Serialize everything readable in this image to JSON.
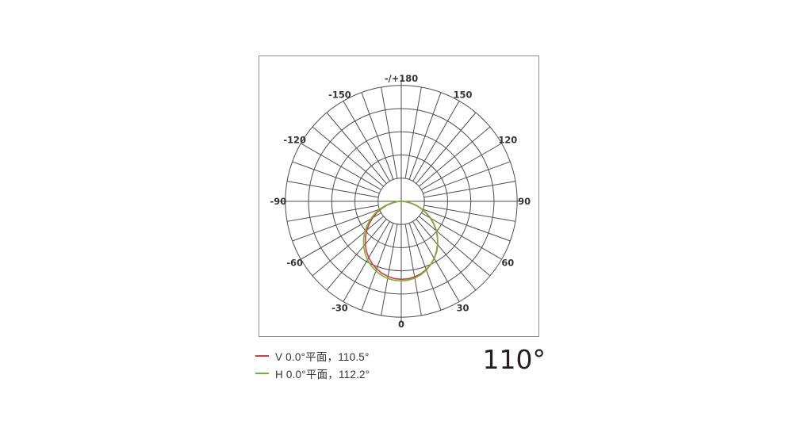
{
  "figure": {
    "beam_angle_large_label": "110°"
  },
  "colors": {
    "grid": "#4f4b49",
    "frame": "#8f8f8f",
    "label_text": "#333333",
    "big_text": "#241f1d",
    "v_plane_red": "#d9383d",
    "h_plane_green": "#6fb52f"
  },
  "legend": {
    "items": [
      {
        "label": "V 0.0°平面，110.5°",
        "color": "#d9383d"
      },
      {
        "label": "H 0.0°平面，112.2°",
        "color": "#6fb52f"
      }
    ]
  },
  "chart_data": {
    "type": "polar",
    "subtype": "luminous-intensity-distribution",
    "angle_convention": "0° at bottom (nadir), positive clockwise to the right, ±180° at top",
    "radial_scale": "relative intensity, fraction of outer ring radius (no radial tick labels shown)",
    "grid": {
      "rings": 5,
      "spoke_step_deg": 10,
      "label_step_deg": 30
    },
    "angle_labels": [
      {
        "deg": 0,
        "text": "0"
      },
      {
        "deg": 30,
        "text": "30"
      },
      {
        "deg": 60,
        "text": "60"
      },
      {
        "deg": 90,
        "text": "90"
      },
      {
        "deg": 120,
        "text": "120"
      },
      {
        "deg": 150,
        "text": "150"
      },
      {
        "deg": 180,
        "text": "-/+180"
      },
      {
        "deg": -150,
        "text": "-150"
      },
      {
        "deg": -120,
        "text": "-120"
      },
      {
        "deg": -90,
        "text": "-90"
      },
      {
        "deg": -60,
        "text": "-60"
      },
      {
        "deg": -30,
        "text": "-30"
      }
    ],
    "series": [
      {
        "name": "V 0.0°平面",
        "beam_angle_deg": 110.5,
        "color": "#d9383d",
        "data_name": "series-v-curve",
        "points": [
          [
            -95,
            0.0
          ],
          [
            -90,
            0.012
          ],
          [
            -85,
            0.034
          ],
          [
            -80,
            0.077
          ],
          [
            -75,
            0.127
          ],
          [
            -70,
            0.179
          ],
          [
            -65,
            0.232
          ],
          [
            -60,
            0.286
          ],
          [
            -55,
            0.337
          ],
          [
            -50,
            0.389
          ],
          [
            -45,
            0.437
          ],
          [
            -40,
            0.483
          ],
          [
            -35,
            0.525
          ],
          [
            -30,
            0.562
          ],
          [
            -25,
            0.594
          ],
          [
            -20,
            0.621
          ],
          [
            -15,
            0.643
          ],
          [
            -10,
            0.658
          ],
          [
            -5,
            0.669
          ],
          [
            0,
            0.673
          ],
          [
            5,
            0.671
          ],
          [
            10,
            0.662
          ],
          [
            15,
            0.648
          ],
          [
            20,
            0.627
          ],
          [
            25,
            0.601
          ],
          [
            30,
            0.569
          ],
          [
            35,
            0.532
          ],
          [
            40,
            0.489
          ],
          [
            45,
            0.443
          ],
          [
            50,
            0.394
          ],
          [
            55,
            0.342
          ],
          [
            60,
            0.29
          ],
          [
            65,
            0.235
          ],
          [
            70,
            0.182
          ],
          [
            75,
            0.129
          ],
          [
            80,
            0.079
          ],
          [
            85,
            0.035
          ],
          [
            90,
            0.012
          ],
          [
            95,
            0.0
          ]
        ]
      },
      {
        "name": "H 0.0°平面",
        "beam_angle_deg": 112.2,
        "color": "#6fb52f",
        "data_name": "series-h-curve",
        "points": [
          [
            -95,
            0.0
          ],
          [
            -90,
            0.014
          ],
          [
            -85,
            0.039
          ],
          [
            -80,
            0.089
          ],
          [
            -75,
            0.142
          ],
          [
            -70,
            0.197
          ],
          [
            -65,
            0.252
          ],
          [
            -60,
            0.306
          ],
          [
            -55,
            0.36
          ],
          [
            -50,
            0.412
          ],
          [
            -45,
            0.46
          ],
          [
            -40,
            0.505
          ],
          [
            -35,
            0.546
          ],
          [
            -30,
            0.583
          ],
          [
            -25,
            0.613
          ],
          [
            -20,
            0.64
          ],
          [
            -15,
            0.661
          ],
          [
            -10,
            0.676
          ],
          [
            -5,
            0.684
          ],
          [
            0,
            0.687
          ],
          [
            5,
            0.683
          ],
          [
            10,
            0.673
          ],
          [
            15,
            0.656
          ],
          [
            20,
            0.632
          ],
          [
            25,
            0.602
          ],
          [
            30,
            0.567
          ],
          [
            35,
            0.528
          ],
          [
            40,
            0.487
          ],
          [
            45,
            0.443
          ],
          [
            50,
            0.396
          ],
          [
            55,
            0.346
          ],
          [
            60,
            0.295
          ],
          [
            65,
            0.242
          ],
          [
            70,
            0.188
          ],
          [
            75,
            0.135
          ],
          [
            80,
            0.084
          ],
          [
            85,
            0.037
          ],
          [
            90,
            0.013
          ],
          [
            95,
            0.0
          ]
        ]
      }
    ]
  }
}
